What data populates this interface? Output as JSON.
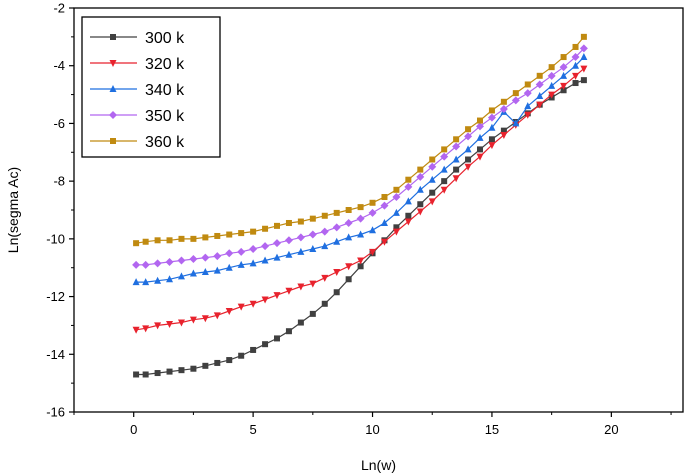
{
  "chart_data": {
    "type": "line",
    "title": "",
    "xlabel": "Ln(w)",
    "ylabel": "Ln(segma Ac)",
    "xlim": [
      -2.5,
      23
    ],
    "ylim": [
      -16,
      -2
    ],
    "xticks": [
      0,
      5,
      10,
      15,
      20
    ],
    "yticks": [
      -16,
      -14,
      -12,
      -10,
      -8,
      -6,
      -4,
      -2
    ],
    "xtick_labels": [
      "0",
      "5",
      "10",
      "15",
      "20"
    ],
    "ytick_labels": [
      "-16",
      "-14",
      "-12",
      "-10",
      "-8",
      "-6",
      "-4",
      "-2"
    ],
    "legend_position": "top-left",
    "series": [
      {
        "name": "300 k",
        "color": "#404040",
        "marker": "square",
        "x": [
          0.1,
          0.5,
          1.0,
          1.5,
          2.0,
          2.5,
          3.0,
          3.5,
          4.0,
          4.5,
          5.0,
          5.5,
          6.0,
          6.5,
          7.0,
          7.5,
          8.0,
          8.5,
          9.0,
          9.5,
          10.0,
          10.5,
          11.0,
          11.5,
          12.0,
          12.5,
          13.0,
          13.5,
          14.0,
          14.5,
          15.0,
          15.5,
          16.0,
          16.5,
          17.0,
          17.5,
          18.0,
          18.5,
          18.85
        ],
        "y": [
          -14.7,
          -14.7,
          -14.65,
          -14.6,
          -14.55,
          -14.5,
          -14.4,
          -14.3,
          -14.2,
          -14.05,
          -13.85,
          -13.65,
          -13.45,
          -13.2,
          -12.9,
          -12.6,
          -12.25,
          -11.85,
          -11.4,
          -10.95,
          -10.5,
          -10.05,
          -9.6,
          -9.2,
          -8.8,
          -8.4,
          -8.0,
          -7.6,
          -7.25,
          -6.9,
          -6.55,
          -6.25,
          -5.95,
          -5.65,
          -5.35,
          -5.1,
          -4.85,
          -4.6,
          -4.5
        ]
      },
      {
        "name": "320 k",
        "color": "#e8222d",
        "marker": "triangle-down",
        "x": [
          0.1,
          0.5,
          1.0,
          1.5,
          2.0,
          2.5,
          3.0,
          3.5,
          4.0,
          4.5,
          5.0,
          5.5,
          6.0,
          6.5,
          7.0,
          7.5,
          8.0,
          8.5,
          9.0,
          9.5,
          10.0,
          10.5,
          11.0,
          11.5,
          12.0,
          12.5,
          13.0,
          13.5,
          14.0,
          14.5,
          15.0,
          15.5,
          16.0,
          16.5,
          17.0,
          17.5,
          18.0,
          18.5,
          18.85
        ],
        "y": [
          -13.15,
          -13.1,
          -13.0,
          -12.95,
          -12.9,
          -12.8,
          -12.75,
          -12.65,
          -12.5,
          -12.35,
          -12.25,
          -12.1,
          -11.95,
          -11.8,
          -11.65,
          -11.55,
          -11.35,
          -11.15,
          -10.95,
          -10.75,
          -10.45,
          -10.1,
          -9.75,
          -9.4,
          -9.05,
          -8.7,
          -8.3,
          -7.9,
          -7.5,
          -7.15,
          -6.75,
          -6.4,
          -6.05,
          -5.7,
          -5.35,
          -5.0,
          -4.7,
          -4.35,
          -4.1
        ]
      },
      {
        "name": "340 k",
        "color": "#1f6fe0",
        "marker": "triangle-up",
        "x": [
          0.1,
          0.5,
          1.0,
          1.5,
          2.0,
          2.5,
          3.0,
          3.5,
          4.0,
          4.5,
          5.0,
          5.5,
          6.0,
          6.5,
          7.0,
          7.5,
          8.0,
          8.5,
          9.0,
          9.5,
          10.0,
          10.5,
          11.0,
          11.5,
          12.0,
          12.5,
          13.0,
          13.5,
          14.0,
          14.5,
          15.0,
          15.5,
          16.0,
          16.5,
          17.0,
          17.5,
          18.0,
          18.5,
          18.85
        ],
        "y": [
          -11.5,
          -11.5,
          -11.45,
          -11.4,
          -11.3,
          -11.2,
          -11.15,
          -11.1,
          -11.0,
          -10.9,
          -10.85,
          -10.75,
          -10.65,
          -10.55,
          -10.45,
          -10.35,
          -10.25,
          -10.1,
          -9.95,
          -9.85,
          -9.7,
          -9.45,
          -9.1,
          -8.7,
          -8.3,
          -7.95,
          -7.6,
          -7.25,
          -6.9,
          -6.5,
          -6.15,
          -5.6,
          -6.0,
          -5.4,
          -5.05,
          -4.7,
          -4.35,
          -4.0,
          -3.7
        ]
      },
      {
        "name": "350 k",
        "color": "#b266f0",
        "marker": "diamond",
        "x": [
          0.1,
          0.5,
          1.0,
          1.5,
          2.0,
          2.5,
          3.0,
          3.5,
          4.0,
          4.5,
          5.0,
          5.5,
          6.0,
          6.5,
          7.0,
          7.5,
          8.0,
          8.5,
          9.0,
          9.5,
          10.0,
          10.5,
          11.0,
          11.5,
          12.0,
          12.5,
          13.0,
          13.5,
          14.0,
          14.5,
          15.0,
          15.5,
          16.0,
          16.5,
          17.0,
          17.5,
          18.0,
          18.5,
          18.85
        ],
        "y": [
          -10.9,
          -10.9,
          -10.85,
          -10.8,
          -10.75,
          -10.7,
          -10.65,
          -10.6,
          -10.5,
          -10.45,
          -10.35,
          -10.25,
          -10.15,
          -10.05,
          -9.95,
          -9.85,
          -9.75,
          -9.6,
          -9.45,
          -9.3,
          -9.1,
          -8.85,
          -8.55,
          -8.2,
          -7.85,
          -7.5,
          -7.15,
          -6.8,
          -6.45,
          -6.1,
          -5.8,
          -5.5,
          -5.2,
          -4.95,
          -4.65,
          -4.35,
          -4.05,
          -3.7,
          -3.4
        ]
      },
      {
        "name": "360 k",
        "color": "#c08a10",
        "marker": "square",
        "x": [
          0.1,
          0.5,
          1.0,
          1.5,
          2.0,
          2.5,
          3.0,
          3.5,
          4.0,
          4.5,
          5.0,
          5.5,
          6.0,
          6.5,
          7.0,
          7.5,
          8.0,
          8.5,
          9.0,
          9.5,
          10.0,
          10.5,
          11.0,
          11.5,
          12.0,
          12.5,
          13.0,
          13.5,
          14.0,
          14.5,
          15.0,
          15.5,
          16.0,
          16.5,
          17.0,
          17.5,
          18.0,
          18.5,
          18.85
        ],
        "y": [
          -10.15,
          -10.1,
          -10.05,
          -10.05,
          -10.0,
          -10.0,
          -9.95,
          -9.9,
          -9.85,
          -9.8,
          -9.75,
          -9.65,
          -9.55,
          -9.45,
          -9.4,
          -9.3,
          -9.2,
          -9.1,
          -9.0,
          -8.9,
          -8.75,
          -8.55,
          -8.3,
          -7.95,
          -7.6,
          -7.25,
          -6.9,
          -6.55,
          -6.2,
          -5.9,
          -5.55,
          -5.25,
          -4.95,
          -4.65,
          -4.35,
          -4.05,
          -3.7,
          -3.35,
          -3.0
        ]
      }
    ]
  }
}
